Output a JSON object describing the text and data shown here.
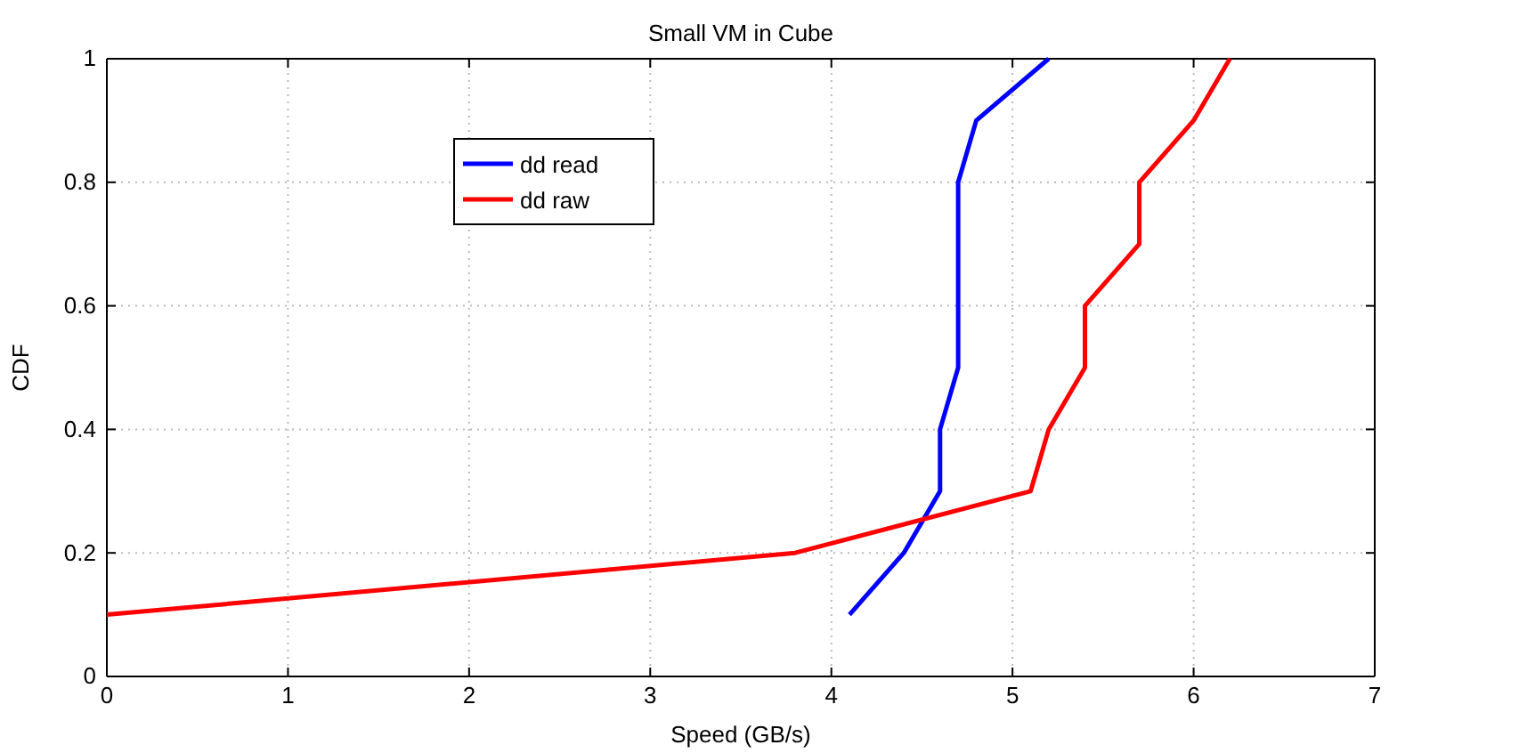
{
  "chart_data": {
    "type": "line",
    "title": "Small VM in Cube",
    "xlabel": "Speed (GB/s)",
    "ylabel": "CDF",
    "xlim": [
      0,
      7
    ],
    "xticks": [
      0,
      1,
      2,
      3,
      4,
      5,
      6,
      7
    ],
    "ylim": [
      0,
      1
    ],
    "yticks": [
      0,
      0.2,
      0.4,
      0.6,
      0.8,
      1
    ],
    "grid": true,
    "legend": "top left",
    "marker": "none",
    "line_style": "solid",
    "series": [
      {
        "name": "dd read",
        "color": "#0000ff",
        "x": [
          4.1,
          4.4,
          4.6,
          4.6,
          4.7,
          4.7,
          4.8,
          5.2
        ],
        "values": [
          0.1,
          0.2,
          0.3,
          0.4,
          0.5,
          0.8,
          0.9,
          1.0
        ]
      },
      {
        "name": "dd raw",
        "color": "#ff0000",
        "x": [
          0,
          3.8,
          5.1,
          5.2,
          5.4,
          5.4,
          5.7,
          5.7,
          6.0,
          6.2
        ],
        "values": [
          0.1,
          0.2,
          0.3,
          0.4,
          0.5,
          0.6,
          0.7,
          0.8,
          0.9,
          1.0
        ]
      }
    ]
  }
}
